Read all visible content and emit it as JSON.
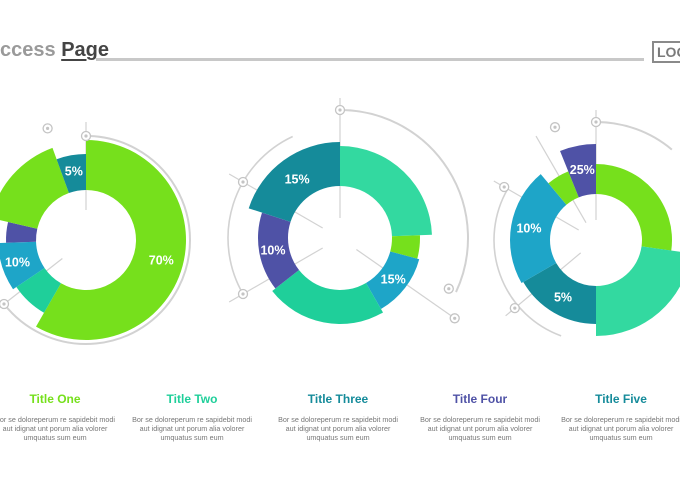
{
  "header": {
    "title_light": "ccess",
    "title_strong": "Page",
    "logo": "LOGO"
  },
  "colors": {
    "lime": "#76e01c",
    "teal": "#1fcf9a",
    "mint": "#33d9a0",
    "cyan": "#1ea5c8",
    "petrol": "#158b9a",
    "indigo": "#4f52a6",
    "guide": "#d2d2d2"
  },
  "chart_data": [
    {
      "type": "pie",
      "title": "Title One",
      "slices": [
        {
          "value": 70,
          "label": "70%"
        },
        {
          "value": null,
          "label": ""
        },
        {
          "value": 10,
          "label": "10%"
        },
        {
          "value": null,
          "label": ""
        },
        {
          "value": null,
          "label": ""
        },
        {
          "value": 5,
          "label": "5%"
        }
      ]
    },
    {
      "type": "pie",
      "title": "Title Two",
      "slices": [
        {
          "value": 15,
          "label": "15%"
        },
        {
          "value": null,
          "label": ""
        },
        {
          "value": 10,
          "label": "10%"
        },
        {
          "value": null,
          "label": ""
        },
        {
          "value": 15,
          "label": "15%"
        }
      ]
    },
    {
      "type": "pie",
      "title": "Title Three",
      "slices": [
        {
          "value": 5,
          "label": "5%"
        },
        {
          "value": null,
          "label": ""
        },
        {
          "value": null,
          "label": ""
        },
        {
          "value": 10,
          "label": "10%"
        },
        {
          "value": 25,
          "label": "25%"
        }
      ]
    }
  ],
  "captions": [
    {
      "title": "Title One",
      "title_color": "#76e01c",
      "desc": "Bor se doloreperum re sapidebit modi aut idignat unt porum alia volorer umquatus sum eum"
    },
    {
      "title": "Title Two",
      "title_color": "#1fcf9a",
      "desc": "Bor se doloreperum re sapidebit modi aut idignat unt porum alia volorer umquatus sum eum"
    },
    {
      "title": "Title Three",
      "title_color": "#158b9a",
      "desc": "Bor se doloreperum re sapidebit modi aut idignat unt porum alia volorer umquatus sum eum"
    },
    {
      "title": "Title Four",
      "title_color": "#4f52a6",
      "desc": "Bor se doloreperum re sapidebit modi aut idignat unt porum alia volorer umquatus sum eum"
    },
    {
      "title": "Title Five",
      "title_color": "#158b9a",
      "desc": "Bor se doloreperum re sapidebit modi aut idignat unt porum alia volorer umquatus sum eum"
    }
  ]
}
